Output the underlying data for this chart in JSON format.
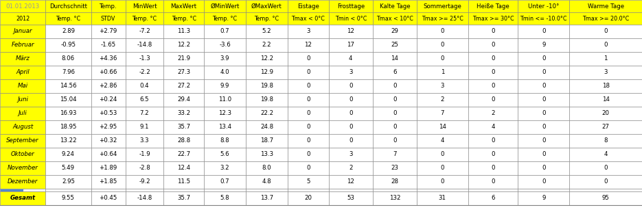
{
  "title_row1": [
    "01.01.2013",
    "Durchschnitt",
    "Temp.",
    "MinWert",
    "MaxWert",
    "ØMinWert",
    "ØMaxWert",
    "Eistage",
    "Frosttage",
    "Kalte Tage",
    "Sommertage",
    "Heiße Tage",
    "Unter -10°",
    "Warme Tage"
  ],
  "title_row2": [
    "2012",
    "Temp. °C",
    "STDV",
    "Temp. °C",
    "Temp. °C",
    "Temp. °C",
    "Temp. °C",
    "Tmax < 0°C",
    "Tmin < 0°C",
    "Tmax < 10°C",
    "Tmax >= 25°C",
    "Tmax >= 30°C",
    "Tmin <= -10.0°C",
    "Tmax >= 20.0°C"
  ],
  "months": [
    "Januar",
    "Februar",
    "März",
    "April",
    "Mai",
    "Juni",
    "Juli",
    "August",
    "September",
    "Oktober",
    "November",
    "Dezember",
    "Gesamt"
  ],
  "data": [
    [
      "2.89",
      "+2.79",
      "-7.2",
      "11.3",
      "0.7",
      "5.2",
      "3",
      "12",
      "29",
      "0",
      "0",
      "0",
      "0"
    ],
    [
      "-0.95",
      "-1.65",
      "-14.8",
      "12.2",
      "-3.6",
      "2.2",
      "12",
      "17",
      "25",
      "0",
      "0",
      "9",
      "0"
    ],
    [
      "8.06",
      "+4.36",
      "-1.3",
      "21.9",
      "3.9",
      "12.2",
      "0",
      "4",
      "14",
      "0",
      "0",
      "0",
      "1"
    ],
    [
      "7.96",
      "+0.66",
      "-2.2",
      "27.3",
      "4.0",
      "12.9",
      "0",
      "3",
      "6",
      "1",
      "0",
      "0",
      "3"
    ],
    [
      "14.56",
      "+2.86",
      "0.4",
      "27.2",
      "9.9",
      "19.8",
      "0",
      "0",
      "0",
      "3",
      "0",
      "0",
      "18"
    ],
    [
      "15.04",
      "+0.24",
      "6.5",
      "29.4",
      "11.0",
      "19.8",
      "0",
      "0",
      "0",
      "2",
      "0",
      "0",
      "14"
    ],
    [
      "16.93",
      "+0.53",
      "7.2",
      "33.2",
      "12.3",
      "22.2",
      "0",
      "0",
      "0",
      "7",
      "2",
      "0",
      "20"
    ],
    [
      "18.95",
      "+2.95",
      "9.1",
      "35.7",
      "13.4",
      "24.8",
      "0",
      "0",
      "0",
      "14",
      "4",
      "0",
      "27"
    ],
    [
      "13.22",
      "+0.32",
      "3.3",
      "28.8",
      "8.8",
      "18.7",
      "0",
      "0",
      "0",
      "4",
      "0",
      "0",
      "8"
    ],
    [
      "9.24",
      "+0.64",
      "-1.9",
      "22.7",
      "5.6",
      "13.3",
      "0",
      "3",
      "7",
      "0",
      "0",
      "0",
      "4"
    ],
    [
      "5.49",
      "+1.89",
      "-2.8",
      "12.4",
      "3.2",
      "8.0",
      "0",
      "2",
      "23",
      "0",
      "0",
      "0",
      "0"
    ],
    [
      "2.95",
      "+1.85",
      "-9.2",
      "11.5",
      "0.7",
      "4.8",
      "5",
      "12",
      "28",
      "0",
      "0",
      "0",
      "0"
    ],
    [
      "9.55",
      "+0.45",
      "-14.8",
      "35.7",
      "5.8",
      "13.7",
      "20",
      "53",
      "132",
      "31",
      "6",
      "9",
      "95"
    ]
  ],
  "yellow_bg": "#FFFF00",
  "white_bg": "#FFFFFF",
  "blue_stripe": "#5588CC",
  "border_color": "#808080",
  "date_text_color": "#999999",
  "font_size": 6.2,
  "header_font_size": 6.2,
  "sub_header_font_size": 5.8,
  "fig_width": 9.35,
  "fig_height": 3.13,
  "dpi": 100
}
